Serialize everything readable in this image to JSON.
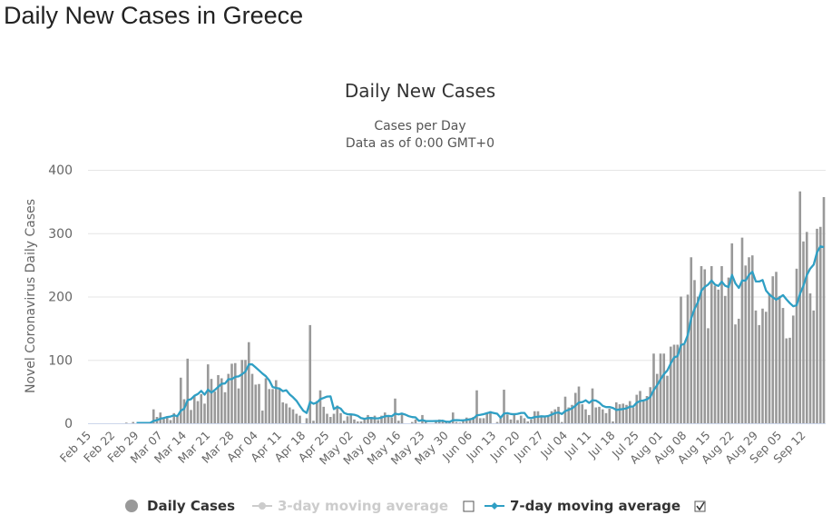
{
  "page": {
    "title": "Daily New Cases in Greece"
  },
  "chart_data": {
    "type": "bar",
    "title": "Daily New Cases",
    "subtitle": [
      "Cases per Day",
      "Data as of 0:00 GMT+0"
    ],
    "xlabel": "",
    "ylabel": "Novel Coronavirus Daily Cases",
    "ylim": [
      0,
      400
    ],
    "yticks": [
      0,
      100,
      200,
      300,
      400
    ],
    "grid": true,
    "legend_position": "bottom",
    "xticks": [
      "Feb 15",
      "Feb 22",
      "Feb 29",
      "Mar 07",
      "Mar 14",
      "Mar 21",
      "Mar 28",
      "Apr 04",
      "Apr 11",
      "Apr 18",
      "Apr 25",
      "May 02",
      "May 09",
      "May 16",
      "May 23",
      "May 30",
      "Jun 06",
      "Jun 13",
      "Jun 20",
      "Jun 27",
      "Jul 04",
      "Jul 11",
      "Jul 18",
      "Jul 25",
      "Aug 01",
      "Aug 08",
      "Aug 15",
      "Aug 22",
      "Aug 29",
      "Sep 05",
      "Sep 12"
    ],
    "dates": [
      "Feb 15",
      "Feb 16",
      "Feb 17",
      "Feb 18",
      "Feb 19",
      "Feb 20",
      "Feb 21",
      "Feb 22",
      "Feb 23",
      "Feb 24",
      "Feb 25",
      "Feb 26",
      "Feb 27",
      "Feb 28",
      "Feb 29",
      "Mar 01",
      "Mar 02",
      "Mar 03",
      "Mar 04",
      "Mar 05",
      "Mar 06",
      "Mar 07",
      "Mar 08",
      "Mar 09",
      "Mar 10",
      "Mar 11",
      "Mar 12",
      "Mar 13",
      "Mar 14",
      "Mar 15",
      "Mar 16",
      "Mar 17",
      "Mar 18",
      "Mar 19",
      "Mar 20",
      "Mar 21",
      "Mar 22",
      "Mar 23",
      "Mar 24",
      "Mar 25",
      "Mar 26",
      "Mar 27",
      "Mar 28",
      "Mar 29",
      "Mar 30",
      "Mar 31",
      "Apr 01",
      "Apr 02",
      "Apr 03",
      "Apr 04",
      "Apr 05",
      "Apr 06",
      "Apr 07",
      "Apr 08",
      "Apr 09",
      "Apr 10",
      "Apr 11",
      "Apr 12",
      "Apr 13",
      "Apr 14",
      "Apr 15",
      "Apr 16",
      "Apr 17",
      "Apr 18",
      "Apr 19",
      "Apr 20",
      "Apr 21",
      "Apr 22",
      "Apr 23",
      "Apr 24",
      "Apr 25",
      "Apr 26",
      "Apr 27",
      "Apr 28",
      "Apr 29",
      "Apr 30",
      "May 01",
      "May 02",
      "May 03",
      "May 04",
      "May 05",
      "May 06",
      "May 07",
      "May 08",
      "May 09",
      "May 10",
      "May 11",
      "May 12",
      "May 13",
      "May 14",
      "May 15",
      "May 16",
      "May 17",
      "May 18",
      "May 19",
      "May 20",
      "May 21",
      "May 22",
      "May 23",
      "May 24",
      "May 25",
      "May 26",
      "May 27",
      "May 28",
      "May 29",
      "May 30",
      "May 31",
      "Jun 01",
      "Jun 02",
      "Jun 03",
      "Jun 04",
      "Jun 05",
      "Jun 06",
      "Jun 07",
      "Jun 08",
      "Jun 09",
      "Jun 10",
      "Jun 11",
      "Jun 12",
      "Jun 13",
      "Jun 14",
      "Jun 15",
      "Jun 16",
      "Jun 17",
      "Jun 18",
      "Jun 19",
      "Jun 20",
      "Jun 21",
      "Jun 22",
      "Jun 23",
      "Jun 24",
      "Jun 25",
      "Jun 26",
      "Jun 27",
      "Jun 28",
      "Jun 29",
      "Jun 30",
      "Jul 01",
      "Jul 02",
      "Jul 03",
      "Jul 04",
      "Jul 05",
      "Jul 06",
      "Jul 07",
      "Jul 08",
      "Jul 09",
      "Jul 10",
      "Jul 11",
      "Jul 12",
      "Jul 13",
      "Jul 14",
      "Jul 15",
      "Jul 16",
      "Jul 17",
      "Jul 18",
      "Jul 19",
      "Jul 20",
      "Jul 21",
      "Jul 22",
      "Jul 23",
      "Jul 24",
      "Jul 25",
      "Jul 26",
      "Jul 27",
      "Jul 28",
      "Jul 29",
      "Jul 30",
      "Jul 31",
      "Aug 01",
      "Aug 02",
      "Aug 03",
      "Aug 04",
      "Aug 05",
      "Aug 06",
      "Aug 07",
      "Aug 08",
      "Aug 09",
      "Aug 10",
      "Aug 11",
      "Aug 12",
      "Aug 13",
      "Aug 14",
      "Aug 15",
      "Aug 16",
      "Aug 17",
      "Aug 18",
      "Aug 19",
      "Aug 20",
      "Aug 21",
      "Aug 22",
      "Aug 23",
      "Aug 24",
      "Aug 25",
      "Aug 26",
      "Aug 27",
      "Aug 28",
      "Aug 29",
      "Aug 30",
      "Aug 31",
      "Sep 01",
      "Sep 02",
      "Sep 03",
      "Sep 04",
      "Sep 05",
      "Sep 06",
      "Sep 07",
      "Sep 08",
      "Sep 09",
      "Sep 10",
      "Sep 11",
      "Sep 12",
      "Sep 13",
      "Sep 14",
      "Sep 15",
      "Sep 16",
      "Sep 17",
      "Sep 18"
    ],
    "series": [
      {
        "name": "Daily Cases",
        "color": "#999999",
        "visible": true,
        "values": [
          0,
          0,
          0,
          0,
          0,
          0,
          0,
          0,
          0,
          0,
          0,
          1,
          0,
          2,
          0,
          0,
          0,
          0,
          2,
          22,
          10,
          17,
          7,
          11,
          5,
          16,
          12,
          72,
          38,
          102,
          21,
          43,
          35,
          46,
          31,
          93,
          70,
          50,
          76,
          71,
          49,
          78,
          94,
          95,
          55,
          100,
          100,
          128,
          78,
          61,
          62,
          20,
          71,
          54,
          54,
          68,
          54,
          33,
          31,
          25,
          22,
          15,
          12,
          0,
          8,
          155,
          4,
          35,
          52,
          26,
          15,
          10,
          15,
          28,
          16,
          4,
          11,
          14,
          6,
          3,
          3,
          8,
          13,
          10,
          12,
          5,
          12,
          17,
          12,
          9,
          39,
          4,
          14,
          0,
          0,
          2,
          6,
          0,
          13,
          3,
          0,
          0,
          3,
          6,
          3,
          2,
          2,
          17,
          2,
          1,
          5,
          9,
          8,
          10,
          52,
          8,
          8,
          16,
          19,
          0,
          2,
          8,
          53,
          14,
          6,
          16,
          5,
          12,
          8,
          3,
          6,
          19,
          19,
          10,
          10,
          13,
          19,
          22,
          26,
          2,
          42,
          25,
          29,
          48,
          58,
          30,
          22,
          13,
          55,
          25,
          26,
          22,
          16,
          23,
          3,
          33,
          30,
          31,
          29,
          35,
          25,
          45,
          51,
          36,
          43,
          57,
          110,
          78,
          110,
          110,
          75,
          121,
          124,
          124,
          200,
          125,
          203,
          262,
          226,
          200,
          248,
          243,
          150,
          248,
          217,
          211,
          248,
          201,
          230,
          284,
          156,
          165,
          293,
          249,
          262,
          265,
          178,
          155,
          181,
          176,
          205,
          232,
          239,
          201,
          182,
          134,
          135,
          170,
          244,
          366,
          287,
          302,
          205,
          178,
          307,
          310,
          357
        ]
      },
      {
        "name": "3-day moving average",
        "color": "#cccccc",
        "visible": false
      },
      {
        "name": "7-day moving average",
        "color": "#2f9fc4",
        "visible": true
      }
    ]
  },
  "legend": {
    "items": [
      {
        "label": "Daily Cases",
        "checkbox": null
      },
      {
        "label": "3-day moving average",
        "checkbox": false
      },
      {
        "label": "7-day moving average",
        "checkbox": true
      }
    ]
  }
}
